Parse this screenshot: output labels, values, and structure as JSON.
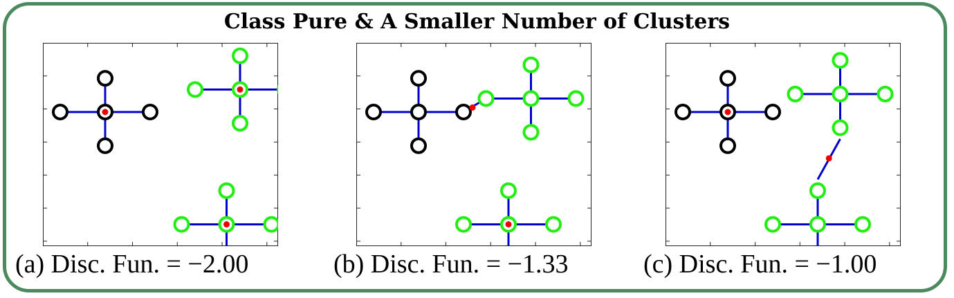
{
  "title": "Class Pure & A Smaller Number of Clusters",
  "colors": {
    "frame": "#4a8a5e",
    "edge": "#0000cc",
    "black_node": "#000000",
    "green_node": "#22ee11",
    "center_dot": "#ee0000"
  },
  "panels": [
    {
      "caption": "(a)  Disc. Fun. = −2.00",
      "clusters": [
        {
          "color": "black",
          "cx": 1,
          "cy": 2,
          "center_dot": true
        },
        {
          "color": "green",
          "cx": 4,
          "cy": 2.5,
          "center_dot": true
        },
        {
          "color": "green",
          "cx": 3.7,
          "cy": -0.5,
          "center_dot": true
        }
      ],
      "bridges": []
    },
    {
      "caption": "(b)  Disc. Fun. = −1.33",
      "clusters": [
        {
          "color": "black",
          "cx": 1,
          "cy": 2,
          "center_dot": false
        },
        {
          "color": "green",
          "cx": 3.5,
          "cy": 2.3,
          "center_dot": false
        },
        {
          "color": "green",
          "cx": 3,
          "cy": -0.5,
          "center_dot": true
        }
      ],
      "bridges": [
        {
          "from": [
            2,
            2
          ],
          "to": [
            2.5,
            2.3
          ],
          "dot": [
            2.2,
            2.1
          ]
        }
      ]
    },
    {
      "caption": "(c)  Disc. Fun. = −1.00",
      "clusters": [
        {
          "color": "black",
          "cx": 1,
          "cy": 2,
          "center_dot": true
        },
        {
          "color": "green",
          "cx": 3.5,
          "cy": 2.4,
          "center_dot": false
        },
        {
          "color": "green",
          "cx": 3,
          "cy": -0.5,
          "center_dot": false
        }
      ],
      "bridges": [
        {
          "from": [
            3.5,
            1.4
          ],
          "to": [
            3,
            0.5
          ],
          "dot": [
            3.25,
            0.97
          ]
        }
      ]
    }
  ]
}
